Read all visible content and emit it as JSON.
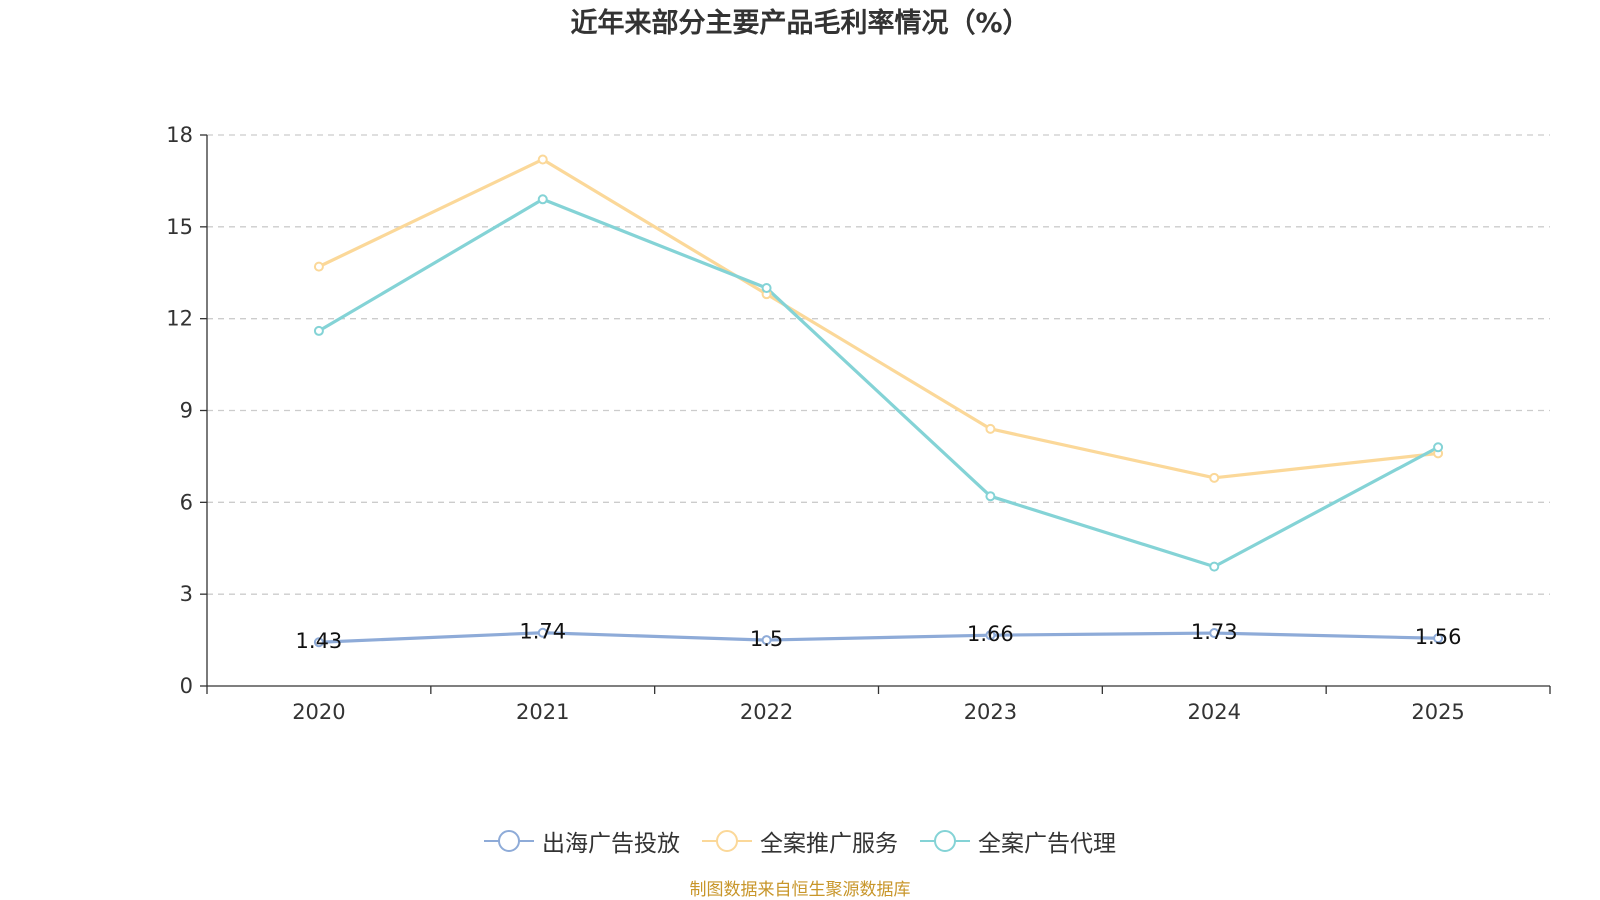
{
  "chart_data": {
    "type": "line",
    "title": "近年来部分主要产品毛利率情况（%）",
    "categories": [
      "2020",
      "2021",
      "2022",
      "2023",
      "2024",
      "2025"
    ],
    "ylim": [
      0,
      18
    ],
    "yticks": [
      0,
      3,
      6,
      9,
      12,
      15,
      18
    ],
    "grid": true,
    "legend_position": "bottom",
    "series": [
      {
        "name": "出海广告投放",
        "color": "#8eabd8",
        "values": [
          1.43,
          1.74,
          1.5,
          1.66,
          1.73,
          1.56
        ],
        "labels": [
          "1.43",
          "1.74",
          "1.5",
          "1.66",
          "1.73",
          "1.56"
        ]
      },
      {
        "name": "全案推广服务",
        "color": "#fbd899",
        "values": [
          13.7,
          17.2,
          12.8,
          8.4,
          6.8,
          7.6
        ]
      },
      {
        "name": "全案广告代理",
        "color": "#84d3d6",
        "values": [
          11.6,
          15.9,
          13.0,
          6.2,
          3.9,
          7.8
        ]
      }
    ]
  },
  "footer": {
    "source": "制图数据来自恒生聚源数据库"
  }
}
